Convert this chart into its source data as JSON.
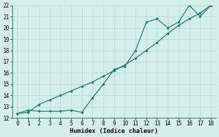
{
  "xlabel": "Humidex (Indice chaleur)",
  "line1_x": [
    0,
    1,
    2,
    3,
    4,
    5,
    6,
    7,
    8,
    9,
    10,
    11,
    12,
    13,
    14,
    15,
    16,
    17,
    18
  ],
  "line1_y": [
    12.4,
    12.5,
    13.2,
    13.6,
    14.0,
    14.4,
    14.8,
    15.2,
    15.7,
    16.2,
    16.7,
    17.3,
    18.0,
    18.7,
    19.5,
    20.2,
    20.8,
    21.3,
    22.0
  ],
  "line2_x": [
    0,
    1,
    2,
    3,
    4,
    5,
    6,
    7,
    8,
    9,
    10,
    11,
    12,
    13,
    14,
    15,
    16,
    17,
    18
  ],
  "line2_y": [
    12.4,
    12.7,
    12.6,
    12.6,
    12.6,
    12.7,
    12.5,
    13.8,
    15.0,
    16.3,
    16.6,
    18.0,
    20.5,
    20.8,
    20.0,
    20.5,
    22.0,
    21.0,
    22.0
  ],
  "line_color": "#1a7a6e",
  "bg_color": "#d4eeea",
  "grid_color": "#b8d8d2",
  "ylim": [
    12,
    22
  ],
  "xlim": [
    -0.5,
    18.5
  ],
  "yticks": [
    12,
    13,
    14,
    15,
    16,
    17,
    18,
    19,
    20,
    21,
    22
  ],
  "xticks": [
    0,
    1,
    2,
    3,
    4,
    5,
    6,
    7,
    8,
    9,
    10,
    11,
    12,
    13,
    14,
    15,
    16,
    17,
    18
  ],
  "tick_fontsize": 5.5,
  "label_fontsize": 6.5,
  "marker_size": 2.0,
  "line_width": 0.9
}
